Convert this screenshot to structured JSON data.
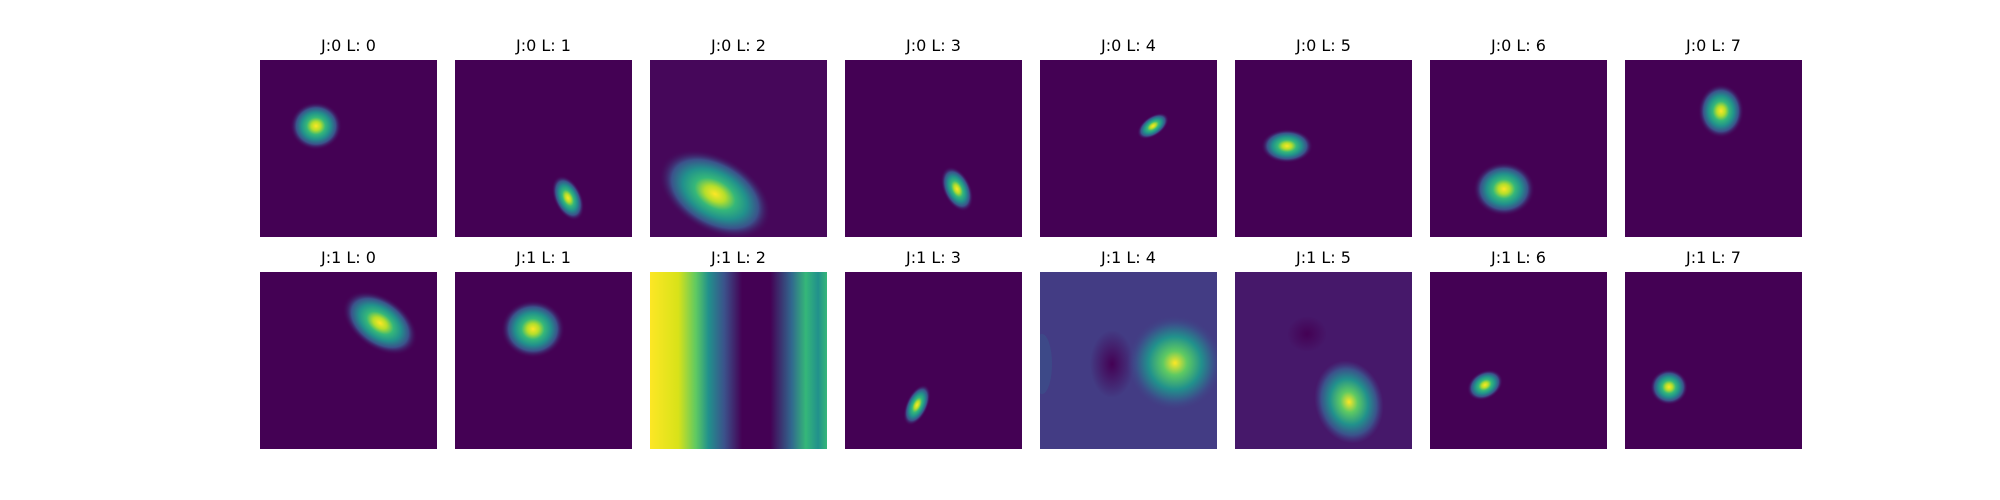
{
  "figure": {
    "colormap": "viridis",
    "rows": [
      {
        "panels": [
          {
            "title": "J:0 L: 0",
            "background": "#440154"
          },
          {
            "title": "J:0 L: 1",
            "background": "#440154"
          },
          {
            "title": "J:0 L: 2",
            "background": "#46075a"
          },
          {
            "title": "J:0 L: 3",
            "background": "#440154"
          },
          {
            "title": "J:0 L: 4",
            "background": "#440154"
          },
          {
            "title": "J:0 L: 5",
            "background": "#440154"
          },
          {
            "title": "J:0 L: 6",
            "background": "#440154"
          },
          {
            "title": "J:0 L: 7",
            "background": "#440154"
          }
        ]
      },
      {
        "panels": [
          {
            "title": "J:1 L: 0",
            "background": "#440154"
          },
          {
            "title": "J:1 L: 1",
            "background": "#440154"
          },
          {
            "title": "J:1 L: 2",
            "background": "#440154"
          },
          {
            "title": "J:1 L: 3",
            "background": "#440154"
          },
          {
            "title": "J:1 L: 4",
            "background": "#433c84"
          },
          {
            "title": "J:1 L: 5",
            "background": "#46186a"
          },
          {
            "title": "J:1 L: 6",
            "background": "#440154"
          },
          {
            "title": "J:1 L: 7",
            "background": "#440154"
          }
        ]
      }
    ]
  }
}
